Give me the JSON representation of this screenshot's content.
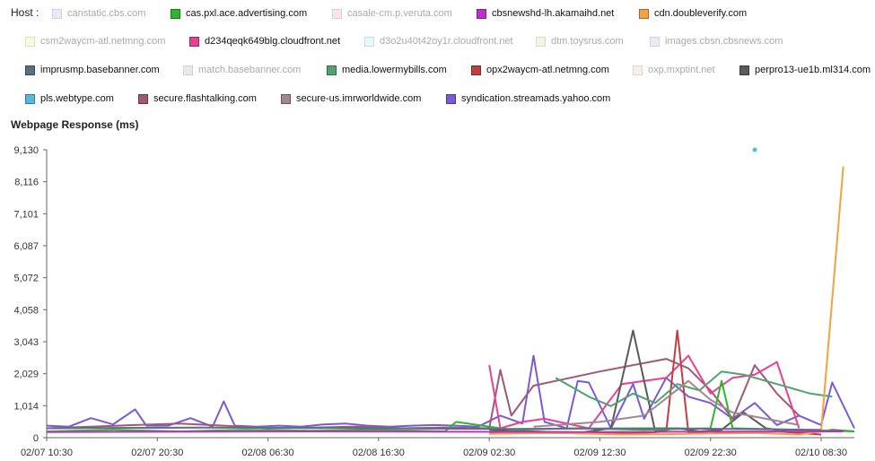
{
  "legend": {
    "label": "Host :",
    "items": [
      {
        "name": "canstatic.cbs.com",
        "color": "#b8cbe8",
        "active": false
      },
      {
        "name": "cas.pxl.ace.advertising.com",
        "color": "#2fb52f",
        "active": true
      },
      {
        "name": "casale-cm.p.veruta.com",
        "color": "#f0b8b8",
        "active": false
      },
      {
        "name": "cbsnewshd-lh.akamaihd.net",
        "color": "#c02fc8",
        "active": true
      },
      {
        "name": "cdn.doubleverify.com",
        "color": "#f5a142",
        "active": true
      },
      {
        "name": "csm2waycm-atl.netmng.com",
        "color": "#f5f0a8",
        "active": false
      },
      {
        "name": "d234qeqk649blg.cloudfront.net",
        "color": "#ec3f93",
        "active": true
      },
      {
        "name": "d3o2u40t42oy1r.cloudfront.net",
        "color": "#b5eef0",
        "active": false
      },
      {
        "name": "dtm.toysrus.com",
        "color": "#dfe6a8",
        "active": false
      },
      {
        "name": "images.cbsn.cbsnews.com",
        "color": "#c6c8e6",
        "active": false
      },
      {
        "name": "imprusmp.basebanner.com",
        "color": "#5a7080",
        "active": true
      },
      {
        "name": "match.basebanner.com",
        "color": "#c4c4c4",
        "active": false
      },
      {
        "name": "media.lowermybills.com",
        "color": "#4fa36f",
        "active": true
      },
      {
        "name": "opx2waycm-atl.netmng.com",
        "color": "#c04040",
        "active": true
      },
      {
        "name": "oxp.mxptint.net",
        "color": "#e8d4c4",
        "active": false
      },
      {
        "name": "perpro13-ue1b.ml314.com",
        "color": "#5a5a5a",
        "active": true
      },
      {
        "name": "pls.webtype.com",
        "color": "#5ab8e0",
        "active": true
      },
      {
        "name": "secure.flashtalking.com",
        "color": "#a05878",
        "active": true
      },
      {
        "name": "secure-us.imrworldwide.com",
        "color": "#a08890",
        "active": true
      },
      {
        "name": "syndication.streamads.yahoo.com",
        "color": "#7a5ad8",
        "active": true
      }
    ]
  },
  "chart_data": {
    "type": "line",
    "title": "Webpage Response (ms)",
    "xlabel": "",
    "ylabel": "",
    "yticks": [
      "0",
      "1,014",
      "2,029",
      "3,043",
      "4,058",
      "5,072",
      "6,087",
      "7,101",
      "8,116",
      "9,130"
    ],
    "ylim": [
      0,
      9130
    ],
    "xlim": [
      "02/07 10:30",
      "02/10 11:30"
    ],
    "xticks": [
      "02/07 10:30",
      "02/07 20:30",
      "02/08 06:30",
      "02/08 16:30",
      "02/09 02:30",
      "02/09 12:30",
      "02/09 22:30",
      "02/10 08:30"
    ],
    "grid": false,
    "legend_position": "top",
    "series": [
      {
        "name": "syndication.streamads.yahoo.com",
        "color": "#7a5ad8",
        "x": [
          "02/07 10:30",
          "02/07 12:30",
          "02/07 14:30",
          "02/07 16:30",
          "02/07 18:30",
          "02/07 19:30",
          "02/07 21:30",
          "02/07 23:30",
          "02/08 01:30",
          "02/08 02:30",
          "02/08 03:30",
          "02/08 05:30",
          "02/08 07:30",
          "02/08 09:30",
          "02/08 11:30",
          "02/08 13:30",
          "02/08 15:30",
          "02/08 17:30",
          "02/08 19:30",
          "02/08 21:30",
          "02/08 23:30",
          "02/09 01:30",
          "02/09 03:30",
          "02/09 05:30",
          "02/09 06:30",
          "02/09 07:30",
          "02/09 09:30",
          "02/09 10:30",
          "02/09 11:30",
          "02/09 13:30",
          "02/09 15:30",
          "02/09 16:30",
          "02/09 18:30",
          "02/09 20:30",
          "02/09 22:30",
          "02/10 00:30",
          "02/10 02:30",
          "02/10 04:30",
          "02/10 06:30",
          "02/10 08:30",
          "02/10 09:30",
          "02/10 11:30"
        ],
        "y": [
          380,
          350,
          620,
          420,
          900,
          380,
          380,
          620,
          350,
          1150,
          380,
          350,
          380,
          350,
          420,
          450,
          380,
          350,
          380,
          400,
          380,
          350,
          700,
          450,
          2600,
          500,
          300,
          1800,
          1750,
          300,
          1700,
          600,
          1900,
          1300,
          1100,
          600,
          1100,
          400,
          700,
          400,
          1750,
          300
        ]
      },
      {
        "name": "secure.flashtalking.com",
        "color": "#a05878",
        "x": [
          "02/07 10:30",
          "02/07 14:30",
          "02/07 18:30",
          "02/07 22:30",
          "02/08 02:30",
          "02/08 06:30",
          "02/08 10:30",
          "02/08 14:30",
          "02/08 18:30",
          "02/08 22:30",
          "02/09 02:30",
          "02/09 03:30",
          "02/09 04:30",
          "02/09 06:30",
          "02/09 12:30",
          "02/09 18:30",
          "02/09 20:30",
          "02/09 22:30",
          "02/10 00:30",
          "02/10 02:30",
          "02/10 04:30",
          "02/10 06:30"
        ],
        "y": [
          300,
          350,
          400,
          450,
          380,
          300,
          320,
          350,
          300,
          320,
          300,
          2150,
          700,
          1650,
          2100,
          2500,
          2200,
          1500,
          600,
          2300,
          1400,
          700
        ]
      },
      {
        "name": "d234qeqk649blg.cloudfront.net",
        "color": "#ec3f93",
        "x": [
          "02/09 02:30",
          "02/09 03:30",
          "02/09 05:30",
          "02/09 07:30",
          "02/09 11:30",
          "02/09 14:30",
          "02/09 18:30",
          "02/09 20:30",
          "02/09 22:30",
          "02/10 00:30",
          "02/10 02:30",
          "02/10 04:30",
          "02/10 06:30"
        ],
        "y": [
          2300,
          300,
          500,
          600,
          300,
          1700,
          1900,
          2600,
          1400,
          1900,
          2000,
          2400,
          300
        ]
      },
      {
        "name": "perpro13-ue1b.ml314.com",
        "color": "#5a5a5a",
        "x": [
          "02/09 02:30",
          "02/09 06:30",
          "02/09 10:30",
          "02/09 11:30",
          "02/09 13:30",
          "02/09 15:30",
          "02/09 17:30",
          "02/09 19:30",
          "02/09 21:30",
          "02/09 23:30",
          "02/10 01:30",
          "02/10 03:30",
          "02/10 05:30",
          "02/10 07:30",
          "02/10 09:30",
          "02/10 11:30"
        ],
        "y": [
          250,
          200,
          150,
          200,
          300,
          3400,
          200,
          300,
          200,
          250,
          800,
          300,
          200,
          150,
          250,
          200
        ]
      },
      {
        "name": "opx2waycm-atl.netmng.com",
        "color": "#c04040",
        "x": [
          "02/09 02:30",
          "02/09 08:30",
          "02/09 12:30",
          "02/09 16:30",
          "02/09 18:30",
          "02/09 19:30",
          "02/09 20:30",
          "02/09 22:30",
          "02/10 00:30",
          "02/10 04:30",
          "02/10 08:30"
        ],
        "y": [
          150,
          150,
          150,
          150,
          200,
          3400,
          150,
          200,
          150,
          200,
          100
        ]
      },
      {
        "name": "media.lowermybills.com",
        "color": "#4fa36f",
        "x": [
          "02/09 08:30",
          "02/09 11:30",
          "02/09 13:30",
          "02/09 15:30",
          "02/09 17:30",
          "02/09 19:30",
          "02/09 21:30",
          "02/09 23:30",
          "02/10 01:30",
          "02/10 03:30",
          "02/10 05:30",
          "02/10 07:30",
          "02/10 09:30"
        ],
        "y": [
          1900,
          1300,
          1000,
          1400,
          1100,
          1700,
          1500,
          2100,
          2000,
          1800,
          1600,
          1400,
          1300
        ]
      },
      {
        "name": "cdn.doubleverify.com",
        "color": "#f5a142",
        "x": [
          "02/09 02:30",
          "02/09 08:30",
          "02/09 14:30",
          "02/09 20:30",
          "02/10 02:30",
          "02/10 06:30",
          "02/10 08:30",
          "02/10 10:30"
        ],
        "y": [
          120,
          150,
          100,
          120,
          150,
          100,
          200,
          8600
        ]
      },
      {
        "name": "cas.pxl.ace.advertising.com",
        "color": "#2fb52f",
        "x": [
          "02/07 10:30",
          "02/07 16:30",
          "02/07 22:30",
          "02/08 04:30",
          "02/08 10:30",
          "02/08 16:30",
          "02/08 22:30",
          "02/08 23:30",
          "02/09 04:30",
          "02/09 10:30",
          "02/09 16:30",
          "02/09 22:30",
          "02/09 23:30",
          "02/10 00:30",
          "02/10 06:30",
          "02/10 11:30"
        ],
        "y": [
          200,
          250,
          200,
          250,
          220,
          250,
          200,
          500,
          250,
          300,
          250,
          300,
          1800,
          300,
          250,
          200
        ]
      },
      {
        "name": "pls.webtype.com",
        "color": "#5ab8e0",
        "x": [
          "02/10 02:30"
        ],
        "y": [
          9130
        ]
      },
      {
        "name": "secure-us.imrworldwide.com",
        "color": "#a08890",
        "x": [
          "02/09 06:30",
          "02/09 12:30",
          "02/09 16:30",
          "02/09 20:30",
          "02/09 22:30",
          "02/10 00:30",
          "02/10 06:30"
        ],
        "y": [
          350,
          500,
          700,
          1800,
          1200,
          800,
          400
        ]
      },
      {
        "name": "imprusmp.basebanner.com",
        "color": "#5a7080",
        "x": [
          "02/07 10:30",
          "02/08 00:30",
          "02/08 14:30",
          "02/09 04:30",
          "02/09 18:30",
          "02/10 08:30"
        ],
        "y": [
          300,
          320,
          300,
          280,
          300,
          250
        ]
      },
      {
        "name": "cbsnewshd-lh.akamaihd.net",
        "color": "#c02fc8",
        "x": [
          "02/07 10:30",
          "02/08 10:30",
          "02/09 10:30",
          "02/10 10:30"
        ],
        "y": [
          180,
          200,
          180,
          200
        ]
      }
    ]
  }
}
